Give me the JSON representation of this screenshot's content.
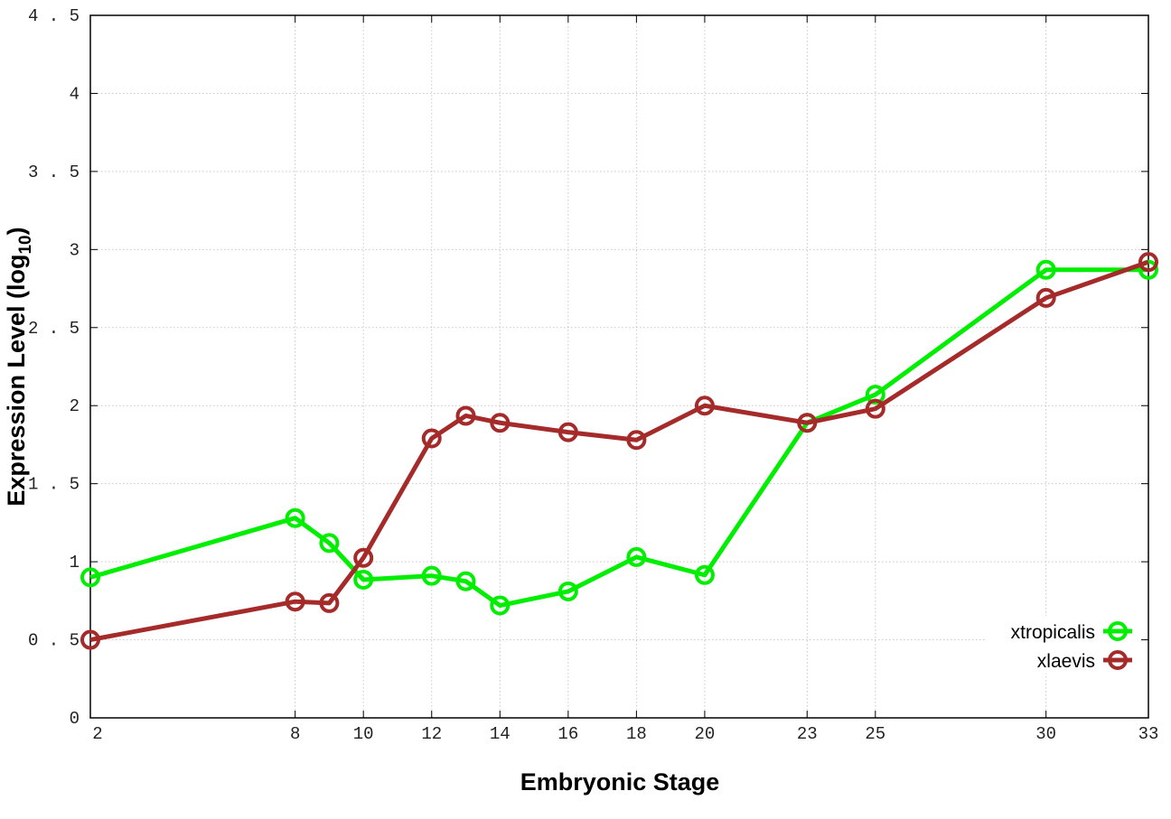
{
  "chart_data": {
    "type": "line",
    "title": "",
    "xlabel": "Embryonic Stage",
    "ylabel": "Expression Level (log",
    "ylabel_sub": "10",
    "ylabel_close": ")",
    "xlim": [
      2,
      33
    ],
    "ylim": [
      0,
      4.5
    ],
    "grid": true,
    "legend_position": "bottom-right",
    "x": [
      2,
      8,
      9,
      10,
      12,
      13,
      14,
      16,
      18,
      20,
      23,
      25,
      30,
      33
    ],
    "xticks": [
      2,
      8,
      10,
      12,
      14,
      16,
      18,
      20,
      23,
      25,
      30,
      33
    ],
    "yticks": [
      "0",
      "0.5",
      "1",
      "1.5",
      "2",
      "2.5",
      "3",
      "3.5",
      "4",
      "4.5"
    ],
    "series": [
      {
        "name": "xtropicalis",
        "color": "#00ee00",
        "values": [
          0.9,
          1.28,
          1.12,
          0.885,
          0.91,
          0.875,
          0.72,
          0.81,
          1.03,
          0.915,
          1.89,
          2.07,
          2.87,
          2.87
        ]
      },
      {
        "name": "xlaevis",
        "color": "#a52a2a",
        "values": [
          0.5,
          0.745,
          0.735,
          1.025,
          1.79,
          1.935,
          1.89,
          1.83,
          1.78,
          2.0,
          1.89,
          1.98,
          2.69,
          2.92
        ]
      }
    ]
  }
}
